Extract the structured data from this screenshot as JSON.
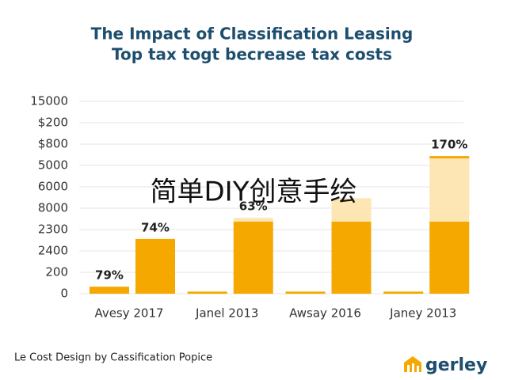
{
  "chart_data": {
    "type": "bar",
    "title": "The Impact of Classification Leasing",
    "subtitle": "Top tax togt becrease tax costs",
    "categories": [
      "Avesy 2017",
      "Janel 2013",
      "Awsay 2016",
      "Janey 2013"
    ],
    "series": [
      {
        "color": "#f5a800",
        "values": [
          0.33,
          0.1,
          0.1,
          0.1
        ],
        "value_labels": [
          "79%",
          null,
          null,
          null
        ]
      },
      {
        "color": "#f5a800",
        "values": [
          2.56,
          3.37,
          3.37,
          3.37
        ],
        "value_labels": [
          "74%",
          null,
          null,
          null
        ]
      },
      {
        "color": "#fde6b4",
        "values": [
          null,
          0.18,
          1.1,
          2.96
        ],
        "value_labels": [
          null,
          "63%",
          null,
          null
        ]
      },
      {
        "color": "#f5a800",
        "values": [
          null,
          null,
          null,
          0.11
        ],
        "value_labels": [
          null,
          null,
          null,
          "170%"
        ]
      }
    ],
    "ylim": [
      0,
      9
    ],
    "yticks": [
      {
        "value": 0,
        "label": "0"
      },
      {
        "value": 1,
        "label": "200"
      },
      {
        "value": 2,
        "label": "2400"
      },
      {
        "value": 3,
        "label": "2300"
      },
      {
        "value": 4,
        "label": "8000"
      },
      {
        "value": 5,
        "label": "6000"
      },
      {
        "value": 6,
        "label": "5000"
      },
      {
        "value": 7,
        "label": "$800"
      },
      {
        "value": 8,
        "label": "$200"
      },
      {
        "value": 9,
        "label": "15000"
      }
    ],
    "grid": true,
    "watermark": "简单DIY创意手绘",
    "footer": "Le Cost Design by Cassification Popice",
    "logo": "gerley"
  }
}
